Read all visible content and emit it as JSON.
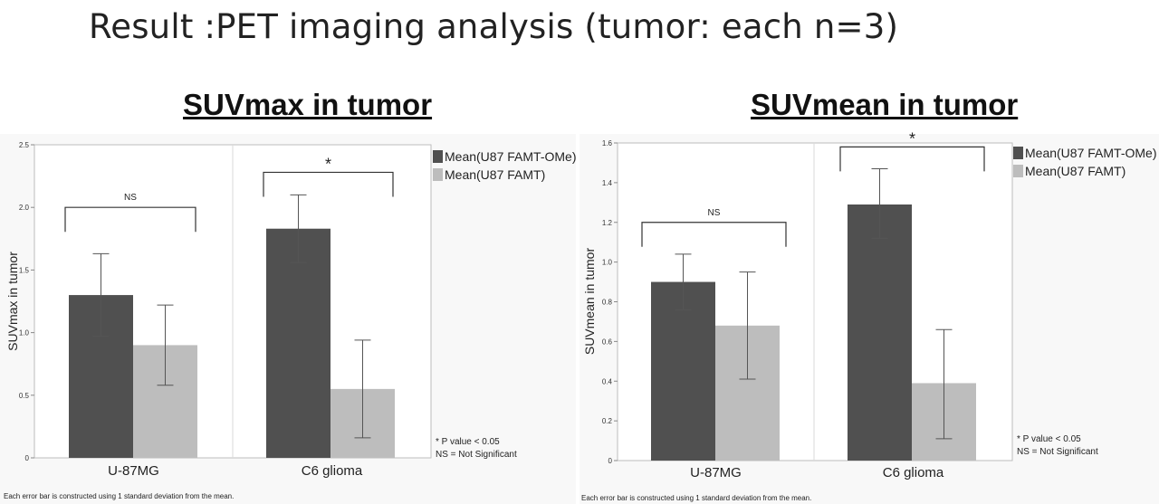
{
  "slide": {
    "title": "Result :PET imaging analysis (tumor: each n=3)"
  },
  "chart_data": [
    {
      "type": "bar",
      "title": "SUVmax in tumor",
      "ylabel": "SUVmax in tumor",
      "xlabel": "",
      "categories": [
        "U-87MG",
        "C6 glioma"
      ],
      "series": [
        {
          "name": "Mean(U87 FAMT-OMe)",
          "color": "#505050",
          "values": [
            1.3,
            1.83
          ],
          "error_low": [
            0.97,
            1.56
          ],
          "error_high": [
            1.63,
            2.1
          ]
        },
        {
          "name": "Mean(U87 FAMT)",
          "color": "#bdbdbd",
          "values": [
            0.9,
            0.55
          ],
          "error_low": [
            0.58,
            0.16
          ],
          "error_high": [
            1.22,
            0.94
          ]
        }
      ],
      "ylim": [
        0,
        2.5
      ],
      "yticks": [
        0,
        0.5,
        1.0,
        1.5,
        2.0,
        2.5
      ],
      "ytick_labels": [
        "0",
        "0.5",
        "1.0",
        "1.5",
        "2.0",
        "2.5"
      ],
      "significance": [
        {
          "category": "U-87MG",
          "label": "NS",
          "level": 2.0
        },
        {
          "category": "C6 glioma",
          "label": "*",
          "level": 2.28
        }
      ],
      "notes": [
        "* P value < 0.05",
        "NS = Not Significant"
      ],
      "footnote": "Each error bar is constructed using 1 standard deviation from the mean.",
      "grid": false,
      "legend_position": "right"
    },
    {
      "type": "bar",
      "title": "SUVmean in tumor",
      "ylabel": "SUVmean in tumor",
      "xlabel": "",
      "categories": [
        "U-87MG",
        "C6 glioma"
      ],
      "series": [
        {
          "name": "Mean(U87 FAMT-OMe)",
          "color": "#505050",
          "values": [
            0.9,
            1.29
          ],
          "error_low": [
            0.76,
            1.12
          ],
          "error_high": [
            1.04,
            1.47
          ]
        },
        {
          "name": "Mean(U87 FAMT)",
          "color": "#bdbdbd",
          "values": [
            0.68,
            0.39
          ],
          "error_low": [
            0.41,
            0.11
          ],
          "error_high": [
            0.95,
            0.66
          ]
        }
      ],
      "ylim": [
        0,
        1.6
      ],
      "yticks": [
        0,
        0.2,
        0.4,
        0.6,
        0.8,
        1.0,
        1.2,
        1.4,
        1.6
      ],
      "ytick_labels": [
        "0",
        "0.2",
        "0.4",
        "0.6",
        "0.8",
        "1.0",
        "1.2",
        "1.4",
        "1.6"
      ],
      "significance": [
        {
          "category": "U-87MG",
          "label": "NS",
          "level": 1.2
        },
        {
          "category": "C6 glioma",
          "label": "*",
          "level": 1.58
        }
      ],
      "notes": [
        "* P value < 0.05",
        "NS = Not Significant"
      ],
      "footnote": "Each error bar is constructed using 1 standard deviation from the mean.",
      "grid": false,
      "legend_position": "right"
    }
  ]
}
